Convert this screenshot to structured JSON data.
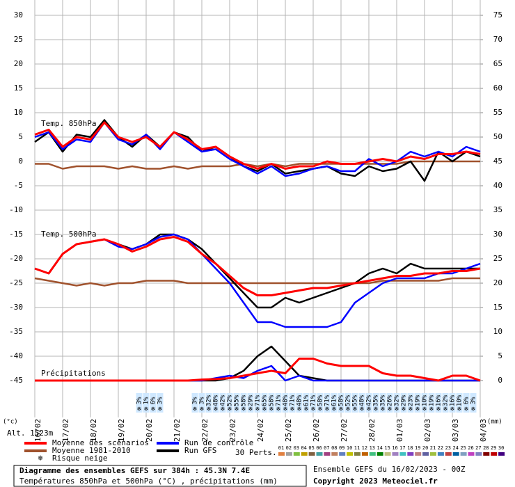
{
  "chart_data": {
    "type": "line",
    "title": "Diagramme des ensembles GEFS sur 384h : 45.3N 7.4E",
    "subtitle": "Températures 850hPa et 500hPa (°C) , précipitations (mm)",
    "run_label": "Ensemble GEFS du 16/02/2023 - 00Z",
    "copyright": "Copyright 2023 Meteociel.fr",
    "y_unit": "(°c)",
    "y2_unit": "(mm)",
    "altitude": "Alt. 1523m",
    "xlim": [
      0,
      384
    ],
    "xticks": [
      {
        "value": 0,
        "label": "16/02"
      },
      {
        "value": 24,
        "label": "17/02"
      },
      {
        "value": 48,
        "label": "18/02"
      },
      {
        "value": 72,
        "label": "19/02"
      },
      {
        "value": 96,
        "label": "20/02"
      },
      {
        "value": 120,
        "label": "21/02"
      },
      {
        "value": 144,
        "label": "22/02"
      },
      {
        "value": 168,
        "label": "23/02"
      },
      {
        "value": 192,
        "label": "24/02"
      },
      {
        "value": 216,
        "label": "25/02"
      },
      {
        "value": 240,
        "label": "26/02"
      },
      {
        "value": 264,
        "label": "27/02"
      },
      {
        "value": 288,
        "label": "28/02"
      },
      {
        "value": 312,
        "label": "01/03"
      },
      {
        "value": 336,
        "label": "02/03"
      },
      {
        "value": 360,
        "label": "03/03"
      },
      {
        "value": 384,
        "label": "04/03"
      }
    ],
    "ylim": [
      -45,
      30
    ],
    "yticks": [
      -45,
      -40,
      -35,
      -30,
      -25,
      -20,
      -15,
      -10,
      -5,
      0,
      5,
      10,
      15,
      20,
      25,
      30
    ],
    "y2lim": [
      0,
      75
    ],
    "y2ticks": [
      0,
      5,
      10,
      15,
      20,
      25,
      30,
      35,
      40,
      45,
      50,
      55,
      60,
      65,
      70,
      75
    ],
    "grid": true,
    "x": [
      0,
      12,
      24,
      36,
      48,
      60,
      72,
      84,
      96,
      108,
      120,
      132,
      144,
      156,
      168,
      180,
      192,
      204,
      216,
      228,
      240,
      252,
      264,
      276,
      288,
      300,
      312,
      324,
      336,
      348,
      360,
      372,
      384
    ],
    "legend": [
      {
        "name": "Moyenne des scénarios",
        "color": "#ff0000"
      },
      {
        "name": "Moyenne 1981-2010",
        "color": "#a0522d"
      },
      {
        "name": "Run de contrôle",
        "color": "#0000ff"
      },
      {
        "name": "Run GFS",
        "color": "#000000"
      }
    ],
    "groups": [
      {
        "label": "Temp. 850hPa",
        "series": [
          {
            "color": "#a0522d",
            "values": [
              -0.5,
              -0.5,
              -1.5,
              -1,
              -1,
              -1,
              -1.5,
              -1,
              -1.5,
              -1.5,
              -1,
              -1.5,
              -1,
              -1,
              -1,
              -0.5,
              -1,
              -0.5,
              -1,
              -0.5,
              -0.5,
              -0.5,
              -0.5,
              -0.5,
              -0.5,
              -0.5,
              -0.5,
              0,
              0,
              0,
              0,
              0,
              0
            ]
          },
          {
            "color": "#000000",
            "values": [
              4,
              6,
              2,
              5.5,
              5,
              8.5,
              5,
              3,
              5.5,
              3,
              6,
              5,
              2,
              3,
              1,
              -1,
              -2,
              -0.5,
              -2.5,
              -2,
              -1.5,
              -1,
              -2.5,
              -3,
              -1,
              -2,
              -1.5,
              0,
              -4,
              2,
              0,
              2,
              1
            ]
          },
          {
            "color": "#0000ff",
            "values": [
              5,
              6,
              2.5,
              4.5,
              4,
              8,
              4.5,
              3.5,
              5.5,
              2.5,
              6,
              4,
              2,
              2.5,
              0.5,
              -1,
              -2.5,
              -1,
              -3,
              -2.5,
              -1.5,
              -1,
              -2,
              -2,
              0.5,
              -1,
              0,
              2,
              1,
              2,
              1,
              3,
              2
            ]
          },
          {
            "color": "#ff0000",
            "values": [
              5.5,
              6.5,
              3,
              5,
              4.5,
              8,
              5,
              4,
              5,
              3,
              6,
              4.5,
              2.5,
              3,
              1,
              -0.5,
              -1.5,
              -0.5,
              -1.5,
              -1,
              -1,
              0,
              -0.5,
              -0.5,
              0,
              0.5,
              0,
              1,
              0.5,
              1.5,
              1.5,
              2,
              1.5
            ]
          }
        ]
      },
      {
        "label": "Temp. 500hPa",
        "series": [
          {
            "color": "#a0522d",
            "values": [
              -24,
              -24.5,
              -25,
              -25.5,
              -25,
              -25.5,
              -25,
              -25,
              -24.5,
              -24.5,
              -24.5,
              -25,
              -25,
              -25,
              -25,
              -25,
              -25,
              -25,
              -25,
              -25,
              -25,
              -25,
              -25,
              -25,
              -25,
              -24.5,
              -24.5,
              -24.5,
              -24.5,
              -24.5,
              -24,
              -24,
              -24
            ]
          },
          {
            "color": "#000000",
            "values": [
              -22,
              -23,
              -19,
              -17,
              -16.5,
              -16,
              -17,
              -18,
              -17,
              -15,
              -15,
              -16,
              -18,
              -21,
              -24,
              -27,
              -30,
              -30,
              -28,
              -29,
              -28,
              -27,
              -26,
              -25,
              -23,
              -22,
              -23,
              -21,
              -22,
              -22,
              -22,
              -22,
              -22
            ]
          },
          {
            "color": "#0000ff",
            "values": [
              -22,
              -23,
              -19,
              -17,
              -16.5,
              -16,
              -17.5,
              -18,
              -17,
              -15.5,
              -15,
              -16,
              -19,
              -22,
              -25,
              -29,
              -33,
              -33,
              -34,
              -34,
              -34,
              -34,
              -33,
              -29,
              -27,
              -25,
              -24,
              -24,
              -24,
              -23,
              -23,
              -22,
              -21
            ]
          },
          {
            "color": "#ff0000",
            "values": [
              -22,
              -23,
              -19,
              -17,
              -16.5,
              -16,
              -17,
              -18.5,
              -17.5,
              -16,
              -15.5,
              -16.5,
              -19,
              -21,
              -23.5,
              -26,
              -27.5,
              -27.5,
              -27,
              -26.5,
              -26,
              -26,
              -25.5,
              -25,
              -24.5,
              -24,
              -23.5,
              -23.5,
              -23,
              -23,
              -22.5,
              -22.5,
              -22
            ]
          }
        ]
      },
      {
        "label": "Précipitations",
        "axis": "y2",
        "series": [
          {
            "color": "#000000",
            "values": [
              0,
              0,
              0,
              0,
              0,
              0,
              0,
              0,
              0,
              0,
              0,
              0,
              0,
              0,
              0.5,
              2,
              5,
              7,
              4,
              1,
              0.5,
              0,
              0,
              0,
              0,
              0,
              0,
              0,
              0,
              0,
              0,
              0,
              0
            ]
          },
          {
            "color": "#0000ff",
            "values": [
              0,
              0,
              0,
              0,
              0,
              0,
              0,
              0,
              0,
              0,
              0,
              0,
              0,
              0.5,
              1,
              0.5,
              2,
              3,
              0,
              1,
              0,
              0,
              0,
              0,
              0,
              0,
              0,
              0,
              0,
              0,
              0,
              0,
              0
            ]
          },
          {
            "color": "#ff0000",
            "values": [
              0,
              0,
              0,
              0,
              0,
              0,
              0,
              0,
              0,
              0,
              0,
              0,
              0.2,
              0.3,
              0.5,
              1,
              1.5,
              2,
              1.5,
              4.5,
              4.5,
              3.5,
              3,
              3,
              3,
              1.5,
              1,
              1,
              0.5,
              0,
              1,
              1,
              0
            ]
          }
        ]
      }
    ],
    "snow_risk": {
      "label": "Risque neige",
      "x": [
        90,
        96,
        102,
        108,
        138,
        144,
        150,
        156,
        162,
        168,
        174,
        180,
        186,
        192,
        198,
        204,
        210,
        216,
        222,
        228,
        234,
        240,
        246,
        252,
        258,
        264,
        270,
        276,
        282,
        288,
        294,
        300,
        306,
        312,
        318,
        324,
        330,
        336,
        342,
        348,
        354,
        360,
        366,
        372,
        378
      ],
      "values": [
        3,
        1,
        6,
        3,
        3,
        3,
        32,
        48,
        42,
        52,
        55,
        58,
        29,
        71,
        65,
        58,
        71,
        48,
        71,
        48,
        61,
        71,
        58,
        71,
        61,
        58,
        52,
        55,
        48,
        42,
        35,
        35,
        26,
        32,
        29,
        23,
        19,
        10,
        19,
        16,
        32,
        16,
        10,
        6,
        3
      ],
      "value_labels": [
        "3%",
        "1%",
        "6%",
        "3%",
        "3%",
        "3%",
        "32%",
        "48%",
        "42%",
        "52%",
        "55%",
        "58%",
        "29%",
        "71%",
        "65%",
        "58%",
        "71%",
        "48%",
        "71%",
        "48%",
        "61%",
        "71%",
        "58%",
        "71%",
        "61%",
        "58%",
        "52%",
        "55%",
        "48%",
        "42%",
        "35%",
        "35%",
        "26%",
        "32%",
        "29%",
        "23%",
        "19%",
        "10%",
        "19%",
        "16%",
        "32%",
        "16%",
        "10%",
        "6%",
        "3%"
      ]
    },
    "perturbations": {
      "label": "30 Perts.",
      "names": [
        "01",
        "02",
        "03",
        "04",
        "05",
        "06",
        "07",
        "08",
        "09",
        "10",
        "11",
        "12",
        "13",
        "14",
        "15",
        "16",
        "17",
        "18",
        "19",
        "20",
        "21",
        "22",
        "23",
        "24",
        "25",
        "26",
        "27",
        "28",
        "29",
        "30"
      ],
      "colors": [
        "#e08040",
        "#a0a0a0",
        "#80c040",
        "#c0a000",
        "#806040",
        "#40a0a0",
        "#a04080",
        "#c08060",
        "#6080c0",
        "#c0c000",
        "#808040",
        "#c06000",
        "#40c080",
        "#008000",
        "#c0c080",
        "#a080c0",
        "#40c0c0",
        "#8040c0",
        "#c08080",
        "#6060a0",
        "#a0c040",
        "#4080c0",
        "#c04040",
        "#0060a0",
        "#80a0c0",
        "#c040c0",
        "#8080c0",
        "#800000",
        "#c00000",
        "#400080"
      ]
    }
  }
}
